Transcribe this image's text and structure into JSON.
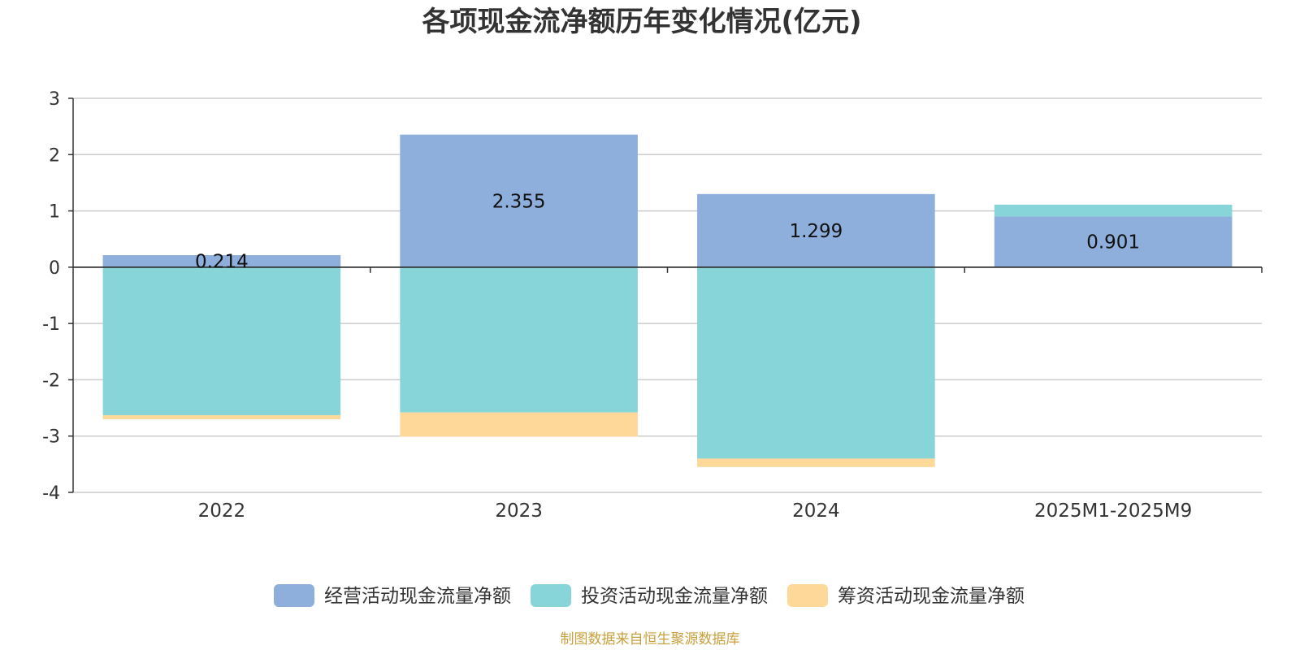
{
  "chart_data": {
    "type": "bar",
    "stacked": true,
    "title": "各项现金流净额历年变化情况(亿元)",
    "xlabel": "",
    "ylabel": "",
    "categories": [
      "2022",
      "2023",
      "2024",
      "2025M1-2025M9"
    ],
    "ylim": [
      -4,
      3
    ],
    "yticks": [
      3,
      2,
      1,
      0,
      -1,
      -2,
      -3,
      -4
    ],
    "grid": true,
    "series": [
      {
        "name": "经营活动现金流量净额",
        "color": "#8eaedb",
        "values": [
          0.214,
          2.355,
          1.299,
          0.901
        ],
        "data_labels": [
          "0.214",
          "2.355",
          "1.299",
          "0.901"
        ]
      },
      {
        "name": "投资活动现金流量净额",
        "color": "#87d5d9",
        "values": [
          -2.63,
          -2.58,
          -3.4,
          0.21
        ]
      },
      {
        "name": "筹资活动现金流量净额",
        "color": "#fdd899",
        "values": [
          -0.07,
          -0.43,
          -0.15,
          0
        ]
      }
    ],
    "legend_position": "bottom",
    "source": "制图数据来自恒生聚源数据库",
    "source_color": "#c8a03c"
  }
}
